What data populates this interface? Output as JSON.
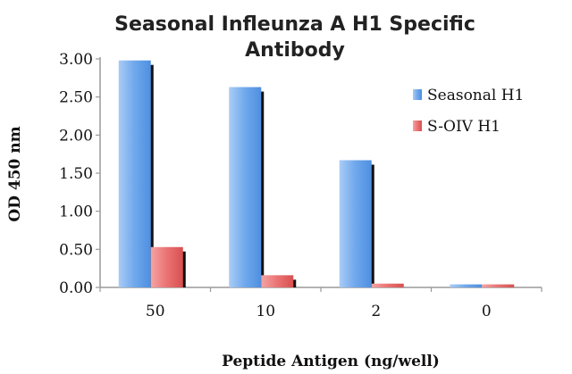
{
  "chart_data": {
    "type": "bar",
    "title_lines": [
      "Seasonal Infleunza A H1 Specific",
      "Antibody"
    ],
    "xlabel": "Peptide Antigen (ng/well)",
    "ylabel": "OD 450 nm",
    "categories": [
      "50",
      "10",
      "2",
      "0"
    ],
    "ylim": [
      0,
      3.0
    ],
    "yticks": [
      "0.00",
      "0.50",
      "1.00",
      "1.50",
      "2.00",
      "2.50",
      "3.00"
    ],
    "series": [
      {
        "name": "Seasonal H1",
        "values": [
          2.98,
          2.63,
          1.67,
          0.04
        ],
        "color": "#5b9ae6"
      },
      {
        "name": "S-OIV H1",
        "values": [
          0.53,
          0.16,
          0.05,
          0.04
        ],
        "color": "#e86a6a"
      }
    ],
    "legend_position": "right",
    "grid": false
  }
}
